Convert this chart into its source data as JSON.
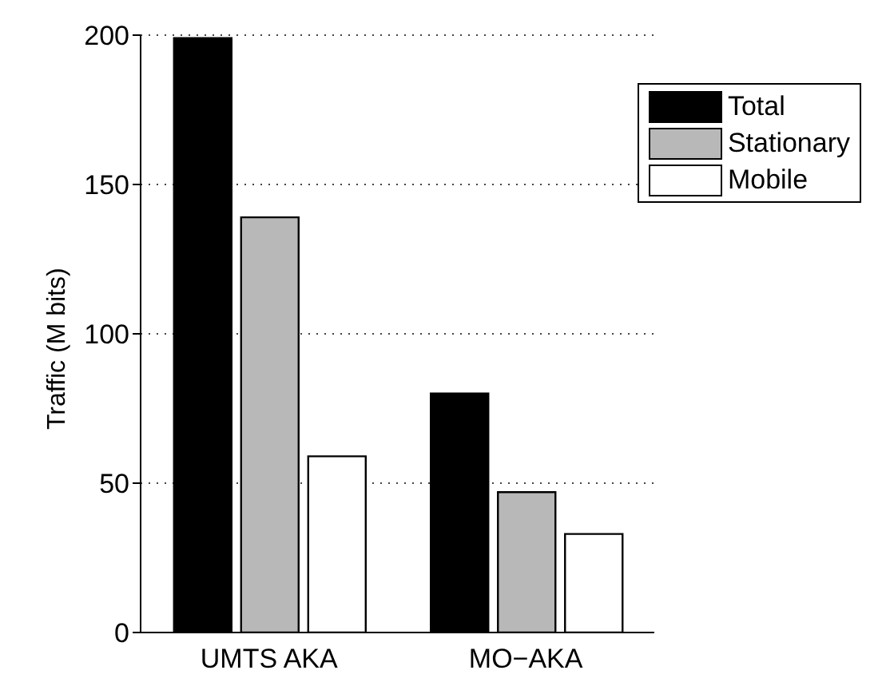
{
  "chart_data": {
    "type": "bar",
    "ylabel": "Traffic (M bits)",
    "categories": [
      "UMTS AKA",
      "MO−AKA"
    ],
    "series": [
      {
        "name": "Total",
        "color": "#000000",
        "values": [
          199,
          80
        ]
      },
      {
        "name": "Stationary",
        "color": "#b8b8b8",
        "values": [
          139,
          47
        ]
      },
      {
        "name": "Mobile",
        "color": "#ffffff",
        "values": [
          59,
          33
        ]
      }
    ],
    "ylim": [
      0,
      200
    ],
    "yticks": [
      0,
      50,
      100,
      150,
      200
    ],
    "grid": "y",
    "legend": "top right"
  }
}
